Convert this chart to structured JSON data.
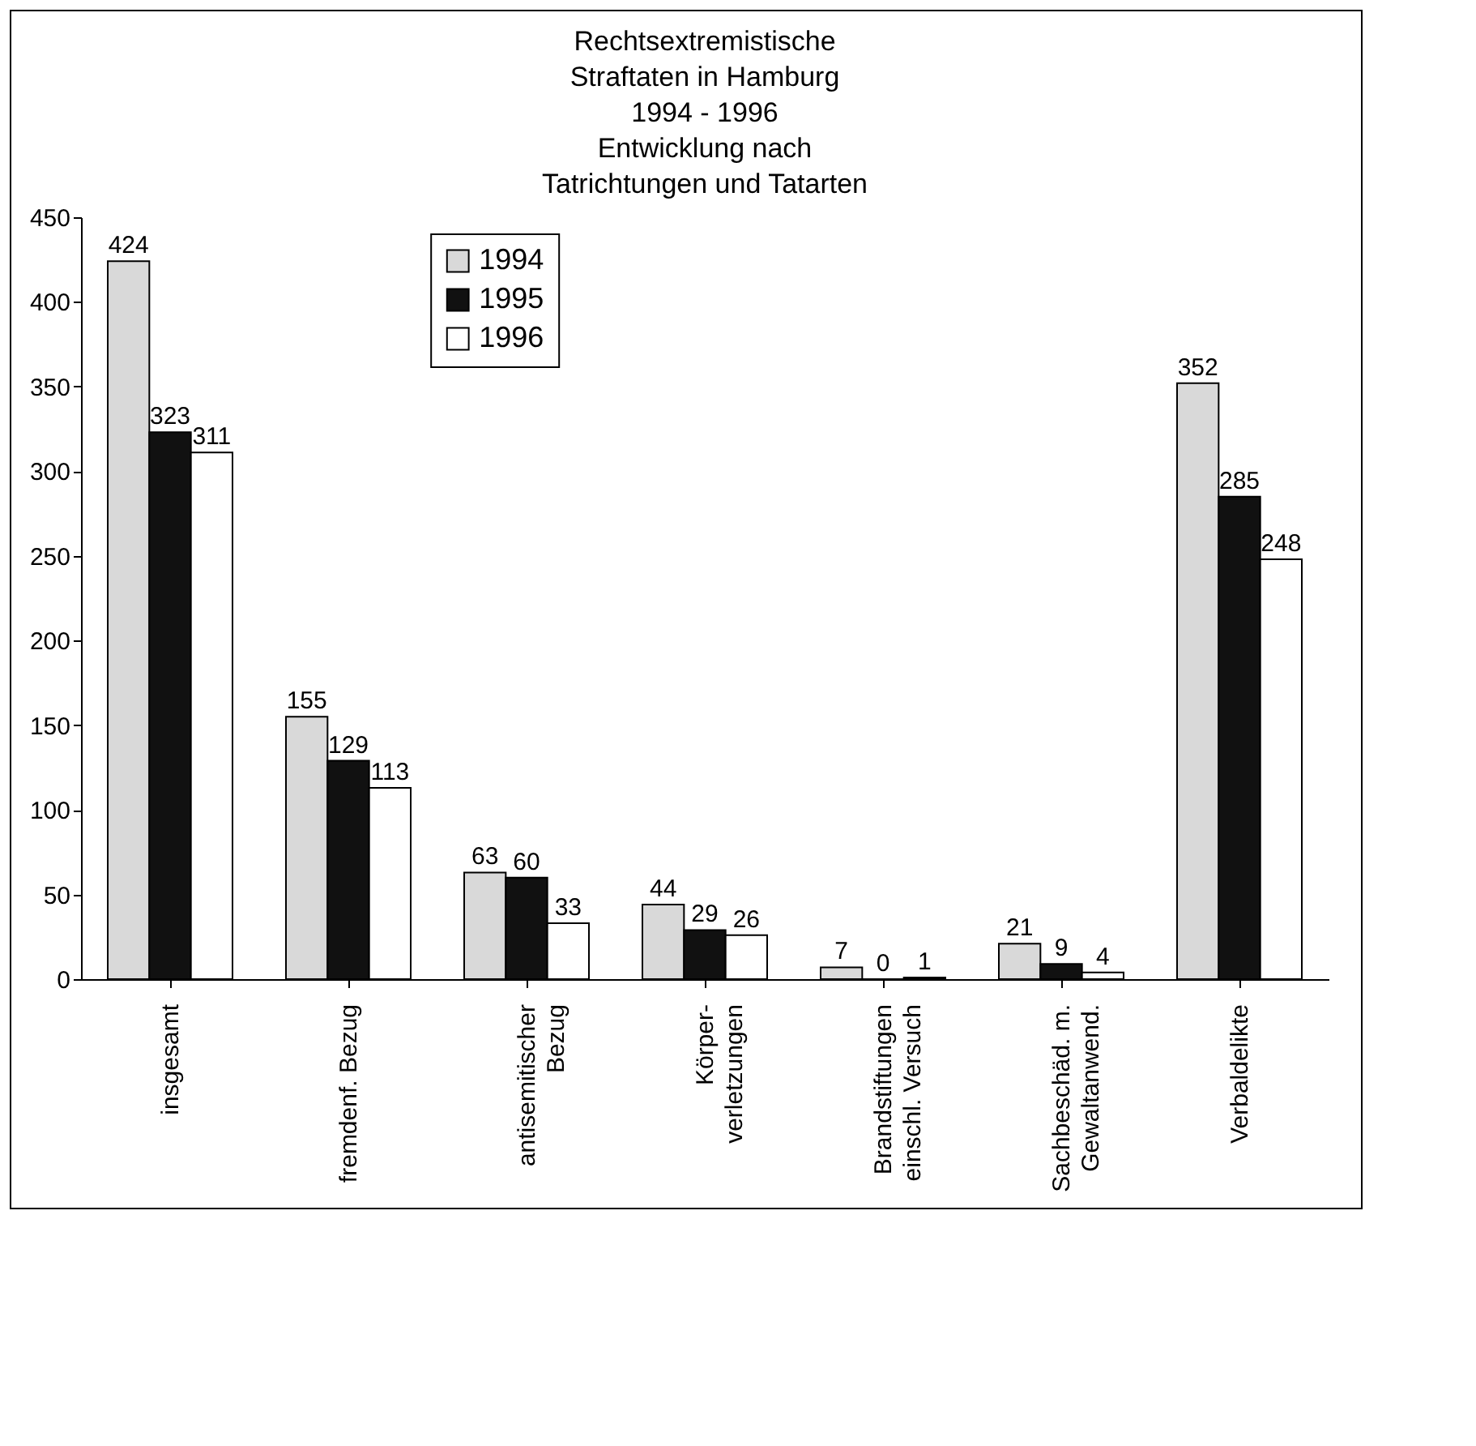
{
  "chart_data": {
    "type": "bar",
    "title": "Rechtsextremistische\nStraftaten in Hamburg\n1994 - 1996\nEntwicklung nach\nTatrichtungen und Tatarten",
    "categories": [
      "insgesamt",
      "fremdenf. Bezug",
      "antisemitischer\nBezug",
      "Körper-\nverletzungen",
      "Brandstiftungen\neinschl. Versuch",
      "Sachbeschäd. m.\nGewaltanwend.",
      "Verbaldelikte"
    ],
    "series": [
      {
        "name": "1994",
        "color": "#d9d9d9",
        "values": [
          424,
          155,
          63,
          44,
          7,
          21,
          352
        ]
      },
      {
        "name": "1995",
        "color": "#111111",
        "values": [
          323,
          129,
          60,
          29,
          0,
          9,
          285
        ]
      },
      {
        "name": "1996",
        "color": "#ffffff",
        "values": [
          311,
          113,
          33,
          26,
          1,
          4,
          248
        ]
      }
    ],
    "ylim": [
      0,
      450
    ],
    "yticks": [
      0,
      50,
      100,
      150,
      200,
      250,
      300,
      350,
      400,
      450
    ],
    "grid": false,
    "legend": "top",
    "data_labels": true
  }
}
